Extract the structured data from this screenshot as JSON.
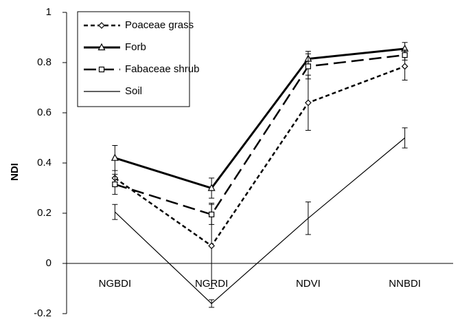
{
  "chart_data": {
    "type": "line",
    "ylabel": "NDI",
    "categories": [
      "NGBDI",
      "NGRDI",
      "NDVI",
      "NNBDI"
    ],
    "series": [
      {
        "name": "Poaceae grass",
        "color": "#000000",
        "line_style": "short-dash",
        "marker": "diamond",
        "values": [
          0.34,
          0.07,
          0.64,
          0.785
        ],
        "errors": [
          0.03,
          0.17,
          0.11,
          0.055
        ]
      },
      {
        "name": "Forb",
        "color": "#000000",
        "line_style": "thick-solid",
        "marker": "triangle",
        "values": [
          0.42,
          0.3,
          0.815,
          0.855
        ],
        "errors": [
          0.05,
          0.04,
          0.03,
          0.025
        ]
      },
      {
        "name": "Fabaceae shrub",
        "color": "#000000",
        "line_style": "long-dash",
        "marker": "square",
        "values": [
          0.315,
          0.195,
          0.785,
          0.83
        ],
        "errors": [
          0.04,
          0.04,
          0.05,
          0.02
        ]
      },
      {
        "name": "Soil",
        "color": "#000000",
        "line_style": "thin-solid",
        "values": [
          0.205,
          -0.16,
          0.18,
          0.5
        ],
        "errors": [
          0.03,
          0.015,
          0.065,
          0.04
        ]
      }
    ],
    "ylim": [
      -0.2,
      1
    ],
    "yticks": [
      -0.2,
      0,
      0.2,
      0.4,
      0.6,
      0.8,
      1
    ],
    "legend": "upper left"
  }
}
